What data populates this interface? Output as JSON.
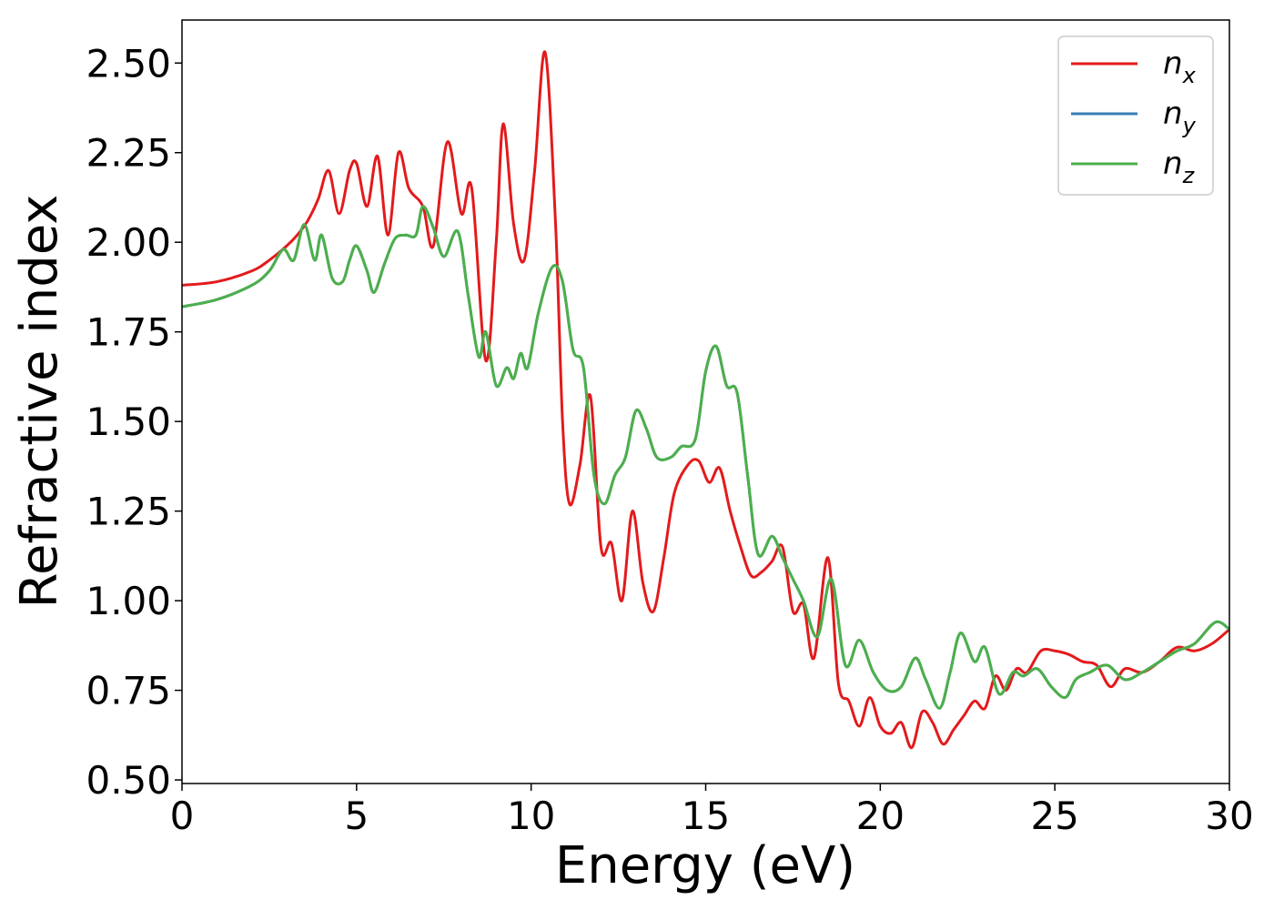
{
  "chart_data": {
    "type": "line",
    "title": "",
    "xlabel": "Energy (eV)",
    "ylabel": "Refractive index",
    "xlim": [
      0,
      30
    ],
    "ylim": [
      0.49,
      2.62
    ],
    "xticks": [
      0,
      5,
      10,
      15,
      20,
      25,
      30
    ],
    "xtick_labels": [
      "0",
      "5",
      "10",
      "15",
      "20",
      "25",
      "30"
    ],
    "yticks": [
      0.5,
      0.75,
      1.0,
      1.25,
      1.5,
      1.75,
      2.0,
      2.25,
      2.5
    ],
    "ytick_labels": [
      "0.50",
      "0.75",
      "1.00",
      "1.25",
      "1.50",
      "1.75",
      "2.00",
      "2.25",
      "2.50"
    ],
    "grid": false,
    "legend_position": "top-right",
    "series": [
      {
        "name": "n_x",
        "label_base": "n",
        "label_sub": "x",
        "color": "#e31a1c",
        "x": [
          0,
          1,
          2,
          2.5,
          3,
          3.3,
          3.6,
          3.9,
          4.2,
          4.5,
          4.8,
          5.0,
          5.3,
          5.6,
          5.9,
          6.2,
          6.5,
          6.9,
          7.2,
          7.6,
          8.0,
          8.3,
          8.7,
          9.0,
          9.2,
          9.5,
          9.8,
          10.1,
          10.4,
          10.7,
          10.9,
          11.1,
          11.4,
          11.7,
          12.0,
          12.3,
          12.6,
          12.9,
          13.2,
          13.5,
          13.8,
          14.1,
          14.5,
          14.8,
          15.1,
          15.4,
          15.7,
          16.0,
          16.3,
          16.6,
          16.9,
          17.2,
          17.5,
          17.8,
          18.1,
          18.5,
          18.8,
          19.1,
          19.4,
          19.7,
          20.0,
          20.3,
          20.6,
          20.9,
          21.2,
          21.5,
          21.8,
          22.1,
          22.4,
          22.7,
          23.0,
          23.3,
          23.6,
          23.9,
          24.2,
          24.6,
          25.0,
          25.4,
          25.8,
          26.2,
          26.6,
          27.0,
          27.5,
          28.0,
          28.5,
          29.0,
          29.5,
          30.0
        ],
        "y": [
          1.88,
          1.89,
          1.92,
          1.95,
          1.99,
          2.02,
          2.06,
          2.12,
          2.2,
          2.08,
          2.2,
          2.22,
          2.1,
          2.24,
          2.02,
          2.25,
          2.15,
          2.1,
          1.99,
          2.28,
          2.08,
          2.15,
          1.67,
          2.0,
          2.33,
          2.05,
          1.95,
          2.2,
          2.53,
          2.05,
          1.5,
          1.27,
          1.38,
          1.57,
          1.15,
          1.16,
          1.0,
          1.25,
          1.05,
          0.97,
          1.12,
          1.3,
          1.38,
          1.39,
          1.33,
          1.37,
          1.25,
          1.15,
          1.07,
          1.08,
          1.11,
          1.15,
          0.97,
          0.99,
          0.84,
          1.12,
          0.77,
          0.72,
          0.65,
          0.73,
          0.65,
          0.63,
          0.66,
          0.59,
          0.69,
          0.66,
          0.6,
          0.64,
          0.68,
          0.72,
          0.7,
          0.79,
          0.75,
          0.81,
          0.8,
          0.86,
          0.86,
          0.85,
          0.83,
          0.82,
          0.76,
          0.81,
          0.8,
          0.83,
          0.87,
          0.86,
          0.88,
          0.92
        ]
      },
      {
        "name": "n_y",
        "label_base": "n",
        "label_sub": "y",
        "color": "#377eb8",
        "x": [
          0,
          1,
          2,
          2.5,
          2.9,
          3.2,
          3.5,
          3.8,
          4.0,
          4.3,
          4.6,
          4.8,
          5.0,
          5.3,
          5.5,
          5.8,
          6.1,
          6.4,
          6.7,
          6.9,
          7.2,
          7.5,
          7.9,
          8.2,
          8.5,
          8.7,
          9.0,
          9.3,
          9.5,
          9.7,
          9.9,
          10.2,
          10.6,
          10.9,
          11.2,
          11.5,
          11.8,
          12.1,
          12.4,
          12.7,
          13.0,
          13.3,
          13.6,
          14.0,
          14.3,
          14.7,
          15.0,
          15.3,
          15.6,
          15.9,
          16.2,
          16.5,
          16.9,
          17.2,
          17.5,
          17.8,
          18.2,
          18.6,
          19.0,
          19.4,
          19.8,
          20.2,
          20.6,
          21.0,
          21.3,
          21.7,
          22.0,
          22.3,
          22.7,
          23.0,
          23.4,
          23.8,
          24.1,
          24.5,
          24.9,
          25.3,
          25.6,
          26.0,
          26.5,
          27.0,
          27.5,
          28.0,
          28.5,
          29.0,
          29.6,
          30.0
        ],
        "y": [
          1.82,
          1.84,
          1.88,
          1.92,
          1.98,
          1.95,
          2.05,
          1.95,
          2.02,
          1.9,
          1.89,
          1.95,
          1.99,
          1.92,
          1.86,
          1.94,
          2.01,
          2.02,
          2.02,
          2.1,
          2.04,
          1.96,
          2.03,
          1.85,
          1.68,
          1.75,
          1.6,
          1.65,
          1.62,
          1.69,
          1.65,
          1.8,
          1.93,
          1.89,
          1.7,
          1.65,
          1.35,
          1.27,
          1.35,
          1.4,
          1.53,
          1.48,
          1.4,
          1.4,
          1.43,
          1.45,
          1.64,
          1.71,
          1.6,
          1.58,
          1.35,
          1.13,
          1.18,
          1.12,
          1.06,
          1.0,
          0.9,
          1.06,
          0.82,
          0.89,
          0.8,
          0.75,
          0.76,
          0.84,
          0.78,
          0.7,
          0.8,
          0.91,
          0.83,
          0.87,
          0.74,
          0.8,
          0.79,
          0.81,
          0.76,
          0.73,
          0.78,
          0.8,
          0.82,
          0.78,
          0.8,
          0.83,
          0.86,
          0.88,
          0.94,
          0.92
        ]
      },
      {
        "name": "n_z",
        "label_base": "n",
        "label_sub": "z",
        "color": "#4daf4a",
        "x": [
          0,
          1,
          2,
          2.5,
          2.9,
          3.2,
          3.5,
          3.8,
          4.0,
          4.3,
          4.6,
          4.8,
          5.0,
          5.3,
          5.5,
          5.8,
          6.1,
          6.4,
          6.7,
          6.9,
          7.2,
          7.5,
          7.9,
          8.2,
          8.5,
          8.7,
          9.0,
          9.3,
          9.5,
          9.7,
          9.9,
          10.2,
          10.6,
          10.9,
          11.2,
          11.5,
          11.8,
          12.1,
          12.4,
          12.7,
          13.0,
          13.3,
          13.6,
          14.0,
          14.3,
          14.7,
          15.0,
          15.3,
          15.6,
          15.9,
          16.2,
          16.5,
          16.9,
          17.2,
          17.5,
          17.8,
          18.2,
          18.6,
          19.0,
          19.4,
          19.8,
          20.2,
          20.6,
          21.0,
          21.3,
          21.7,
          22.0,
          22.3,
          22.7,
          23.0,
          23.4,
          23.8,
          24.1,
          24.5,
          24.9,
          25.3,
          25.6,
          26.0,
          26.5,
          27.0,
          27.5,
          28.0,
          28.5,
          29.0,
          29.6,
          30.0
        ],
        "y": [
          1.82,
          1.84,
          1.88,
          1.92,
          1.98,
          1.95,
          2.05,
          1.95,
          2.02,
          1.9,
          1.89,
          1.95,
          1.99,
          1.92,
          1.86,
          1.94,
          2.01,
          2.02,
          2.02,
          2.1,
          2.04,
          1.96,
          2.03,
          1.85,
          1.68,
          1.75,
          1.6,
          1.65,
          1.62,
          1.69,
          1.65,
          1.8,
          1.93,
          1.89,
          1.7,
          1.65,
          1.35,
          1.27,
          1.35,
          1.4,
          1.53,
          1.48,
          1.4,
          1.4,
          1.43,
          1.45,
          1.64,
          1.71,
          1.6,
          1.58,
          1.35,
          1.13,
          1.18,
          1.12,
          1.06,
          1.0,
          0.9,
          1.06,
          0.82,
          0.89,
          0.8,
          0.75,
          0.76,
          0.84,
          0.78,
          0.7,
          0.8,
          0.91,
          0.83,
          0.87,
          0.74,
          0.8,
          0.79,
          0.81,
          0.76,
          0.73,
          0.78,
          0.8,
          0.82,
          0.78,
          0.8,
          0.83,
          0.86,
          0.88,
          0.94,
          0.92
        ]
      }
    ]
  }
}
